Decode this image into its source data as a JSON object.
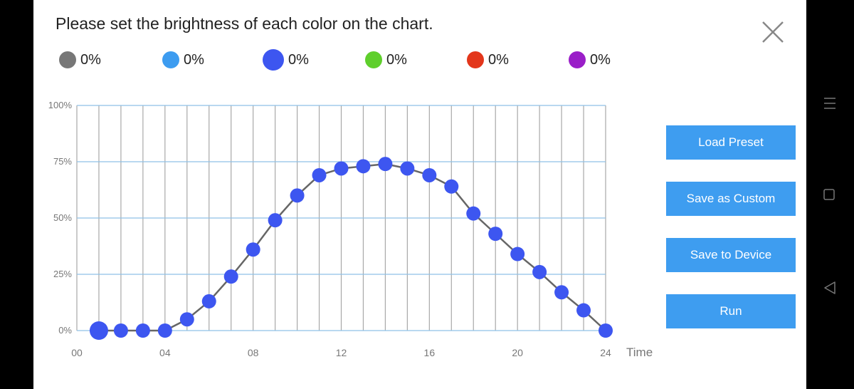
{
  "title": "Please set the brightness of each color on the chart.",
  "legend": [
    {
      "color": "#777777",
      "value": "0%"
    },
    {
      "color": "#3d9cf0",
      "value": "0%"
    },
    {
      "color": "#3d56f0",
      "value": "0%",
      "selected": true
    },
    {
      "color": "#5fcf2c",
      "value": "0%"
    },
    {
      "color": "#e3361b",
      "value": "0%"
    },
    {
      "color": "#9a1ec8",
      "value": "0%"
    }
  ],
  "buttons": {
    "load_preset": "Load Preset",
    "save_custom": "Save as Custom",
    "save_device": "Save to Device",
    "run": "Run"
  },
  "chart_data": {
    "type": "line",
    "ylabels": [
      "100%",
      "75%",
      "50%",
      "25%",
      "0%"
    ],
    "xlabels": [
      "00",
      "04",
      "08",
      "12",
      "16",
      "20",
      "24"
    ],
    "xaxis_title": "Time",
    "ylim": [
      0,
      100
    ],
    "xlim": [
      0,
      24
    ],
    "grid": true,
    "series": [
      {
        "color": "#3d56f0",
        "x": [
          1,
          2,
          3,
          4,
          5,
          6,
          7,
          8,
          9,
          10,
          11,
          12,
          13,
          14,
          15,
          16,
          17,
          18,
          19,
          20,
          21,
          22,
          23,
          24
        ],
        "values": [
          0,
          0,
          0,
          0,
          5,
          13,
          24,
          36,
          49,
          60,
          69,
          72,
          73,
          74,
          72,
          69,
          64,
          52,
          43,
          34,
          26,
          17,
          9,
          0
        ]
      }
    ]
  }
}
